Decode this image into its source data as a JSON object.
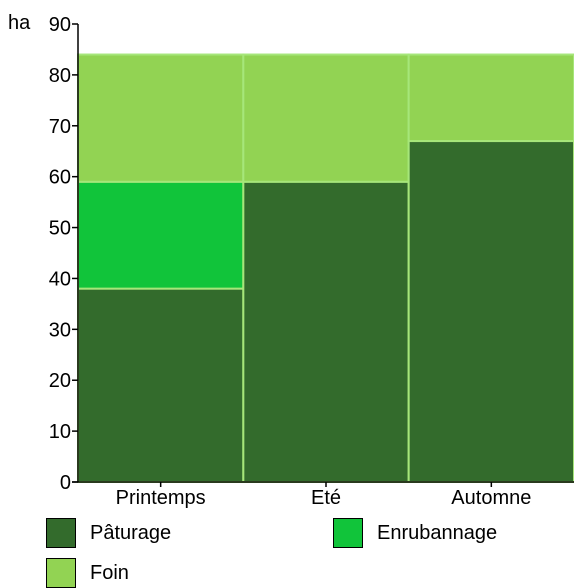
{
  "chart_data": {
    "type": "bar",
    "stacked": true,
    "title": "",
    "ylabel": "ha",
    "xlabel": "",
    "ylim": [
      0,
      90
    ],
    "yticks": [
      0,
      10,
      20,
      30,
      40,
      50,
      60,
      70,
      80,
      90
    ],
    "categories": [
      "Printemps",
      "Eté",
      "Automne"
    ],
    "series": [
      {
        "name": "Pâturage",
        "values": [
          38,
          59,
          67
        ],
        "color": "#336b2c"
      },
      {
        "name": "Enrubannage",
        "values": [
          21,
          0,
          0
        ],
        "color": "#11c43a"
      },
      {
        "name": "Foin",
        "values": [
          25,
          25,
          17
        ],
        "color": "#92d353"
      }
    ],
    "grid": false,
    "legend_position": "bottom"
  }
}
